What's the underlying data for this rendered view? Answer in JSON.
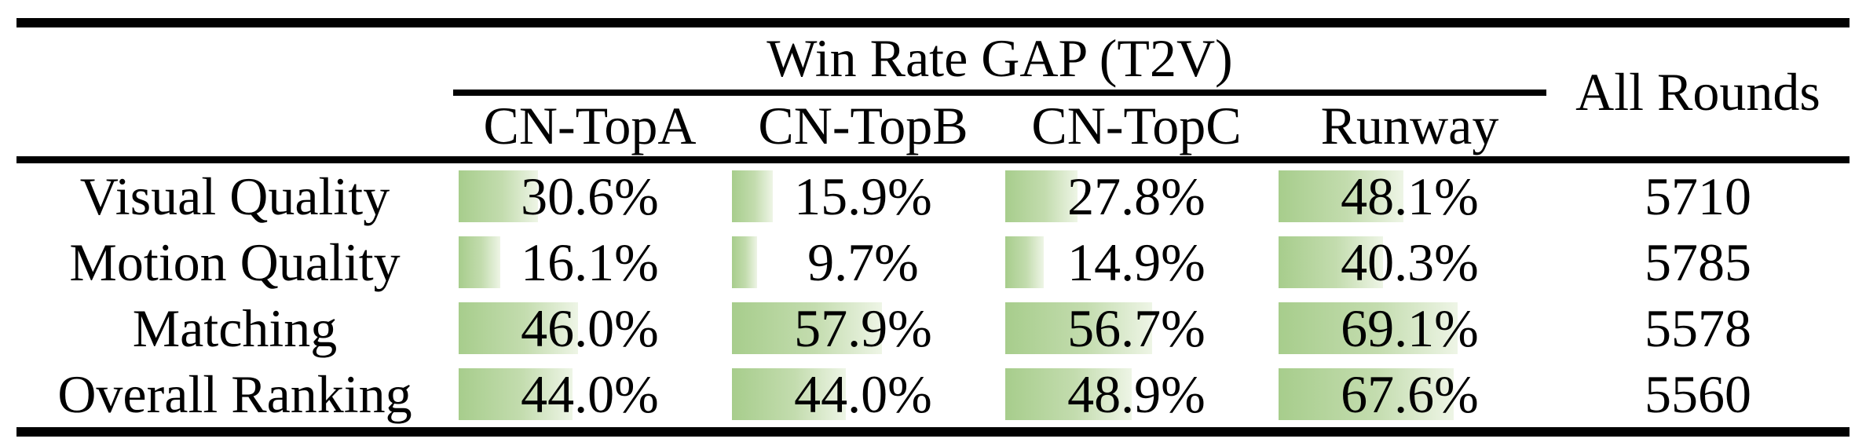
{
  "table": {
    "group_header": "Win Rate GAP (T2V)",
    "all_rounds_header": "All Rounds",
    "columns": [
      "CN-TopA",
      "CN-TopB",
      "CN-TopC",
      "Runway"
    ],
    "rows": [
      {
        "label": "Visual Quality",
        "values": [
          30.6,
          15.9,
          27.8,
          48.1
        ],
        "labels": [
          "30.6%",
          "15.9%",
          "27.8%",
          "48.1%"
        ],
        "all_rounds": "5710"
      },
      {
        "label": "Motion Quality",
        "values": [
          16.1,
          9.7,
          14.9,
          40.3
        ],
        "labels": [
          "16.1%",
          "9.7%",
          "14.9%",
          "40.3%"
        ],
        "all_rounds": "5785"
      },
      {
        "label": "Matching",
        "values": [
          46.0,
          57.9,
          56.7,
          69.1
        ],
        "labels": [
          "46.0%",
          "57.9%",
          "56.7%",
          "69.1%"
        ],
        "all_rounds": "5578"
      },
      {
        "label": "Overall Ranking",
        "values": [
          44.0,
          44.0,
          48.9,
          67.6
        ],
        "labels": [
          "44.0%",
          "44.0%",
          "48.9%",
          "67.6%"
        ],
        "all_rounds": "5560"
      }
    ]
  },
  "colors": {
    "bar_green_start": "#a7cd8c",
    "bar_green_end": "#eef5e6",
    "rule_black": "#010101",
    "text": "#010101",
    "background": "#ffffff"
  },
  "chart_data": {
    "type": "table",
    "title": "Win Rate GAP (T2V)",
    "categories": [
      "Visual Quality",
      "Motion Quality",
      "Matching",
      "Overall Ranking"
    ],
    "series": [
      {
        "name": "CN-TopA",
        "values": [
          30.6,
          16.1,
          46.0,
          44.0
        ],
        "unit": "%"
      },
      {
        "name": "CN-TopB",
        "values": [
          15.9,
          9.7,
          57.9,
          44.0
        ],
        "unit": "%"
      },
      {
        "name": "CN-TopC",
        "values": [
          27.8,
          14.9,
          56.7,
          48.9
        ],
        "unit": "%"
      },
      {
        "name": "Runway",
        "values": [
          48.1,
          40.3,
          69.1,
          67.6
        ],
        "unit": "%"
      },
      {
        "name": "All Rounds",
        "values": [
          5710,
          5785,
          5578,
          5560
        ],
        "unit": "count"
      }
    ],
    "layout": {
      "bars": "in-cell horizontal data bars, left-anchored, green gradient",
      "value_range_percent": [
        0,
        100
      ]
    }
  }
}
